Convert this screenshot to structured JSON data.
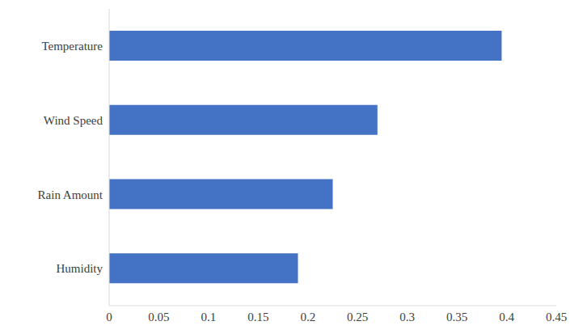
{
  "chart_data": {
    "type": "bar",
    "orientation": "horizontal",
    "categories": [
      "Temperature",
      "Wind Speed",
      "Rain Amount",
      "Humidity"
    ],
    "values": [
      0.395,
      0.27,
      0.225,
      0.19
    ],
    "color": "#4472c4",
    "xlim": [
      0,
      0.45
    ],
    "xticks": [
      0,
      0.05,
      0.1,
      0.15,
      0.2,
      0.25,
      0.3,
      0.35,
      0.4,
      0.45
    ],
    "grid": false
  }
}
